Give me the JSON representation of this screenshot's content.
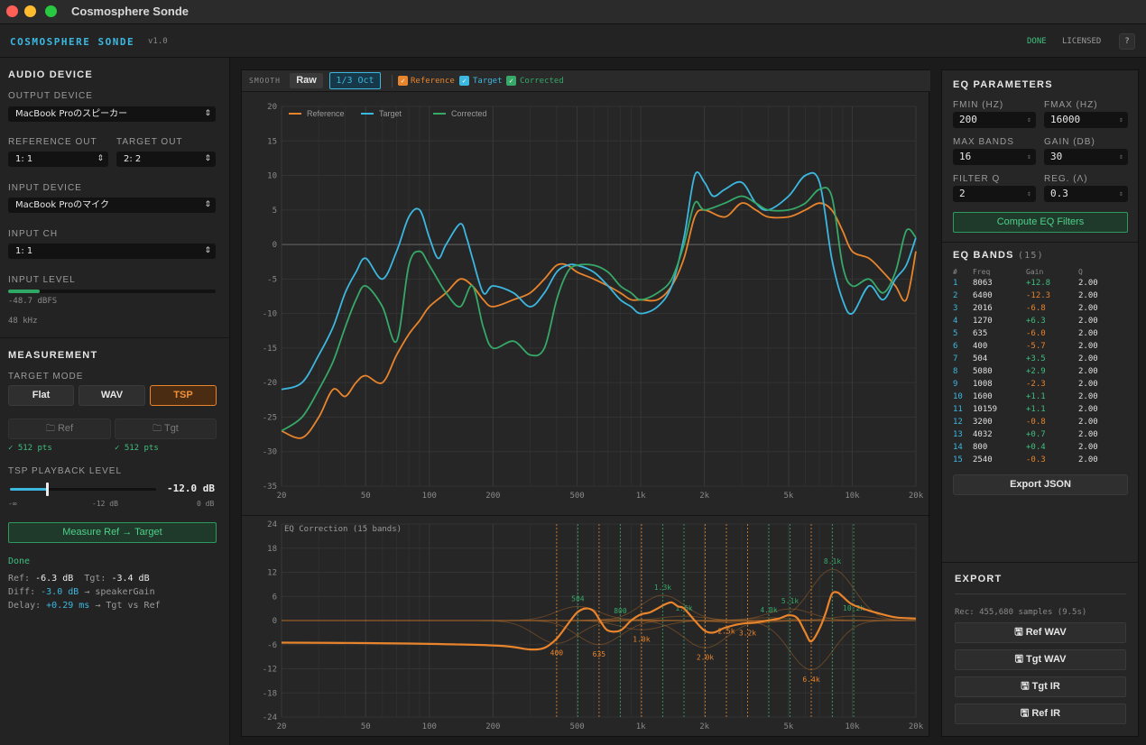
{
  "window": {
    "title": "Cosmosphere Sonde"
  },
  "app": {
    "brand": "COSMOSPHERE SONDE",
    "version": "v1.0",
    "status_done": "DONE",
    "status_license": "LICENSED",
    "help": "?"
  },
  "audio": {
    "title": "AUDIO DEVICE",
    "output_label": "OUTPUT DEVICE",
    "output_value": "MacBook Proのスピーカー",
    "ref_out_label": "REFERENCE OUT",
    "ref_out_value": "1: 1",
    "tgt_out_label": "TARGET OUT",
    "tgt_out_value": "2: 2",
    "input_label": "INPUT DEVICE",
    "input_value": "MacBook Proのマイク",
    "input_ch_label": "INPUT CH",
    "input_ch_value": "1: 1",
    "level_label": "INPUT LEVEL",
    "level_fraction": 0.15,
    "level_text": "-48.7 dBFS",
    "sample_rate": "48 kHz"
  },
  "measurement": {
    "title": "MEASUREMENT",
    "target_mode_label": "TARGET MODE",
    "modes": [
      "Flat",
      "WAV",
      "TSP"
    ],
    "active_mode": "TSP",
    "ref_button": "Ref",
    "tgt_button": "Tgt",
    "ref_points": "✓ 512 pts",
    "tgt_points": "✓ 512 pts",
    "playback_label": "TSP PLAYBACK LEVEL",
    "playback_value": "-12.0 dB",
    "playback_fraction": 0.25,
    "slider_min": "-∞",
    "slider_mid": "-12 dB",
    "slider_max": "0 dB",
    "measure_button": "Measure Ref → Target",
    "status": "Done",
    "ref_lbl": "Ref:",
    "ref_val": "-6.3 dB",
    "tgt_lbl": "Tgt:",
    "tgt_val": "-3.4 dB",
    "diff_lbl": "Diff:",
    "diff_val": "-3.0 dB",
    "diff_note": "→ speakerGain",
    "delay_lbl": "Delay:",
    "delay_val": "+0.29 ms",
    "delay_note": "→ Tgt vs Ref"
  },
  "toolbar": {
    "smooth_label": "SMOOTH",
    "raw_label": "Raw",
    "oct_label": "1/3 Oct",
    "cb_ref": "Reference",
    "cb_tgt": "Target",
    "cb_cor": "Corrected"
  },
  "colors": {
    "reference": "#e8842c",
    "target": "#3cb7e0",
    "corrected": "#36a868",
    "accent_green": "#3fbf7f"
  },
  "eq_params": {
    "title": "EQ PARAMETERS",
    "fmin_label": "FMIN (HZ)",
    "fmin": "200",
    "fmax_label": "FMAX (HZ)",
    "fmax": "16000",
    "maxb_label": "MAX BANDS",
    "maxb": "16",
    "gain_label": "GAIN (DB)",
    "gain": "30",
    "q_label": "FILTER Q",
    "q": "2",
    "reg_label": "REG. (Λ)",
    "reg": "0.3",
    "compute": "Compute EQ Filters"
  },
  "eq_bands": {
    "title": "EQ BANDS",
    "count": "(15)",
    "headers": [
      "#",
      "Freq",
      "Gain",
      "Q"
    ],
    "rows": [
      {
        "n": "1",
        "f": "8063",
        "g": "+12.8",
        "q": "2.00"
      },
      {
        "n": "2",
        "f": "6400",
        "g": "-12.3",
        "q": "2.00"
      },
      {
        "n": "3",
        "f": "2016",
        "g": "-6.8",
        "q": "2.00"
      },
      {
        "n": "4",
        "f": "1270",
        "g": "+6.3",
        "q": "2.00"
      },
      {
        "n": "5",
        "f": "635",
        "g": "-6.0",
        "q": "2.00"
      },
      {
        "n": "6",
        "f": "400",
        "g": "-5.7",
        "q": "2.00"
      },
      {
        "n": "7",
        "f": "504",
        "g": "+3.5",
        "q": "2.00"
      },
      {
        "n": "8",
        "f": "5080",
        "g": "+2.9",
        "q": "2.00"
      },
      {
        "n": "9",
        "f": "1008",
        "g": "-2.3",
        "q": "2.00"
      },
      {
        "n": "10",
        "f": "1600",
        "g": "+1.1",
        "q": "2.00"
      },
      {
        "n": "11",
        "f": "10159",
        "g": "+1.1",
        "q": "2.00"
      },
      {
        "n": "12",
        "f": "3200",
        "g": "-0.8",
        "q": "2.00"
      },
      {
        "n": "13",
        "f": "4032",
        "g": "+0.7",
        "q": "2.00"
      },
      {
        "n": "14",
        "f": "800",
        "g": "+0.4",
        "q": "2.00"
      },
      {
        "n": "15",
        "f": "2540",
        "g": "-0.3",
        "q": "2.00"
      }
    ],
    "export_json": "Export JSON"
  },
  "export": {
    "title": "EXPORT",
    "rec_info": "Rec: 455,680 samples (9.5s)",
    "buttons": [
      "Ref WAV",
      "Tgt WAV",
      "Tgt IR",
      "Ref IR"
    ]
  },
  "chart_data": [
    {
      "type": "line",
      "x_scale": "log",
      "xlim": [
        20,
        20000
      ],
      "ylim": [
        -35,
        20
      ],
      "x_ticks": [
        20,
        50,
        100,
        200,
        500,
        1000,
        2000,
        5000,
        10000,
        20000
      ],
      "x_tick_labels": [
        "20",
        "50",
        "100",
        "200",
        "500",
        "1k",
        "2k",
        "5k",
        "10k",
        "20k"
      ],
      "y_ticks": [
        20,
        15,
        10,
        5,
        0,
        -5,
        -10,
        -15,
        -20,
        -25,
        -30,
        -35
      ],
      "legend": "top-left",
      "series": [
        {
          "name": "Reference",
          "color": "#e8842c",
          "x": [
            20,
            25,
            30,
            35,
            40,
            45,
            50,
            60,
            70,
            80,
            90,
            100,
            120,
            140,
            160,
            180,
            200,
            250,
            300,
            350,
            400,
            450,
            500,
            600,
            700,
            800,
            900,
            1000,
            1200,
            1400,
            1600,
            1800,
            2000,
            2500,
            3000,
            3500,
            4000,
            5000,
            6000,
            7000,
            8000,
            9000,
            10000,
            12000,
            14000,
            16000,
            18000,
            20000
          ],
          "y": [
            -27,
            -28,
            -25,
            -21,
            -22,
            -20,
            -19,
            -20,
            -16,
            -13,
            -11,
            -9,
            -7,
            -5,
            -6,
            -8,
            -9,
            -8,
            -7,
            -5,
            -3,
            -3,
            -4,
            -5,
            -6,
            -7,
            -8,
            -8,
            -8,
            -6,
            -2,
            4,
            5,
            4,
            6,
            5,
            4,
            4,
            5,
            6,
            5,
            2,
            -1,
            -2,
            -4,
            -6,
            -8,
            -1
          ]
        },
        {
          "name": "Target",
          "color": "#3cb7e0",
          "x": [
            20,
            25,
            30,
            35,
            40,
            45,
            50,
            60,
            70,
            80,
            90,
            100,
            110,
            120,
            140,
            150,
            160,
            180,
            200,
            250,
            300,
            350,
            400,
            450,
            500,
            600,
            700,
            800,
            900,
            1000,
            1200,
            1400,
            1600,
            1800,
            2000,
            2200,
            2500,
            3000,
            3500,
            4000,
            5000,
            6000,
            7000,
            8000,
            9000,
            10000,
            12000,
            14000,
            16000,
            18000,
            20000
          ],
          "y": [
            -21,
            -20,
            -16,
            -12,
            -7,
            -4,
            -2,
            -5,
            -1,
            4,
            5,
            1,
            -2,
            0,
            3,
            1,
            -2,
            -7,
            -6,
            -7,
            -9,
            -7,
            -4,
            -3,
            -3,
            -4,
            -6,
            -8,
            -9,
            -10,
            -9,
            -6,
            1,
            10,
            9,
            7,
            8,
            9,
            6,
            5,
            7,
            10,
            9,
            -2,
            -8,
            -10,
            -6,
            -8,
            -5,
            -3,
            1
          ]
        },
        {
          "name": "Corrected",
          "color": "#36a868",
          "x": [
            20,
            25,
            30,
            35,
            40,
            45,
            50,
            60,
            70,
            80,
            90,
            100,
            120,
            140,
            160,
            180,
            200,
            250,
            300,
            350,
            400,
            450,
            500,
            600,
            700,
            800,
            900,
            1000,
            1200,
            1400,
            1600,
            1800,
            2000,
            2500,
            3000,
            3500,
            4000,
            5000,
            6000,
            7000,
            8000,
            9000,
            10000,
            12000,
            14000,
            16000,
            18000,
            20000
          ],
          "y": [
            -27,
            -25,
            -21,
            -17,
            -12,
            -8,
            -6,
            -9,
            -14,
            -3,
            -1,
            -3,
            -7,
            -9,
            -6,
            -12,
            -15,
            -14,
            -16,
            -15,
            -8,
            -4,
            -3,
            -3,
            -4,
            -6,
            -7,
            -8,
            -7,
            -5,
            0,
            6,
            5,
            6,
            7,
            6,
            5,
            5,
            6,
            8,
            7,
            -3,
            -6,
            -5,
            -7,
            -4,
            2,
            1
          ]
        }
      ]
    },
    {
      "type": "line",
      "title": "EQ Correction",
      "subtitle": "(15 bands)",
      "x_scale": "log",
      "xlim": [
        20,
        20000
      ],
      "ylim": [
        -24,
        24
      ],
      "x_ticks": [
        20,
        50,
        100,
        200,
        500,
        1000,
        2000,
        5000,
        10000,
        20000
      ],
      "x_tick_labels": [
        "20",
        "50",
        "100",
        "200",
        "500",
        "1k",
        "2k",
        "5k",
        "10k",
        "20k"
      ],
      "y_ticks": [
        24,
        18,
        12,
        6,
        0,
        -6,
        -12,
        -18,
        -24
      ],
      "bands": [
        {
          "f": 8063,
          "g": 12.8,
          "label": "8.1k"
        },
        {
          "f": 6400,
          "g": -12.3,
          "label": "6.4k"
        },
        {
          "f": 2016,
          "g": -6.8,
          "label": "2.0k"
        },
        {
          "f": 1270,
          "g": 6.3,
          "label": "1.3k"
        },
        {
          "f": 635,
          "g": -6.0,
          "label": "635"
        },
        {
          "f": 400,
          "g": -5.7,
          "label": "400"
        },
        {
          "f": 504,
          "g": 3.5,
          "label": "504"
        },
        {
          "f": 5080,
          "g": 2.9,
          "label": "5.1k"
        },
        {
          "f": 1008,
          "g": -2.3,
          "label": "1.0k"
        },
        {
          "f": 1600,
          "g": 1.1,
          "label": "1.6k"
        },
        {
          "f": 10159,
          "g": 1.1,
          "label": "10.2k"
        },
        {
          "f": 3200,
          "g": -0.8,
          "label": "3.2k"
        },
        {
          "f": 4032,
          "g": 0.7,
          "label": "4.0k"
        },
        {
          "f": 800,
          "g": 0.4,
          "label": "800"
        },
        {
          "f": 2540,
          "g": -0.3,
          "label": "2.5k"
        }
      ],
      "combined_curve": {
        "x": [
          20,
          50,
          100,
          200,
          250,
          300,
          350,
          400,
          450,
          500,
          550,
          600,
          650,
          700,
          800,
          900,
          1000,
          1100,
          1200,
          1300,
          1400,
          1500,
          1600,
          1800,
          2000,
          2200,
          2500,
          3000,
          3500,
          4000,
          4500,
          5000,
          5500,
          6000,
          6400,
          7000,
          7500,
          8000,
          8500,
          9000,
          10000,
          12000,
          14000,
          16000,
          18000,
          20000
        ],
        "y": [
          -5.5,
          -5.6,
          -5.8,
          -6.2,
          -6.6,
          -7.2,
          -6.8,
          -4.5,
          -1,
          2,
          3,
          2.3,
          -0.5,
          -2.5,
          -2.5,
          0,
          1.5,
          2,
          3,
          4,
          4.5,
          3.5,
          3,
          0,
          -2.5,
          -3,
          -1.8,
          -0.8,
          -0.5,
          0,
          0.5,
          1.3,
          0.6,
          -3,
          -5.2,
          -2,
          2,
          6.5,
          7,
          6,
          4,
          2.5,
          1.5,
          0.8,
          0.6,
          0.5
        ]
      }
    }
  ]
}
